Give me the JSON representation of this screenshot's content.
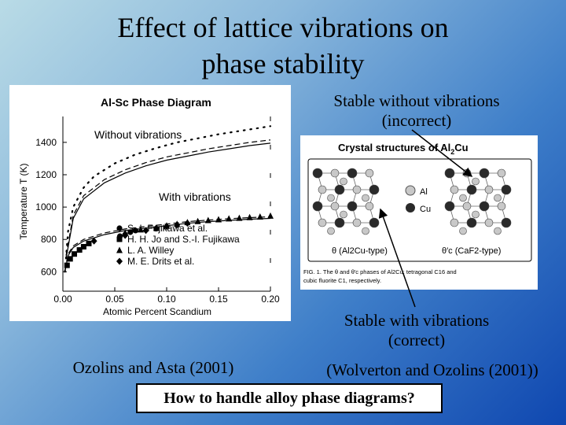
{
  "slide": {
    "title_line1": "Effect of lattice vibrations on",
    "title_line2": "phase stability",
    "label_without": "Stable without vibrations",
    "label_without_sub": "(incorrect)",
    "label_with": "Stable with vibrations",
    "label_with_sub": "(correct)",
    "citation_right": "(Wolverton and Ozolins (2001))",
    "citation_left": "Ozolins and Asta (2001)",
    "question": "How to handle alloy phase diagrams?"
  },
  "chart_data": {
    "type": "line",
    "title": "Al-Sc Phase Diagram",
    "xlabel": "Atomic Percent Scandium",
    "ylabel": "Temperature T (K)",
    "xlim": [
      0,
      0.2
    ],
    "ylim": [
      480,
      1560
    ],
    "xticks": [
      "0.00",
      "0.05",
      "0.10",
      "0.15",
      "0.20"
    ],
    "yticks": [
      "600",
      "800",
      "1000",
      "1200",
      "1400"
    ],
    "xtick_values": [
      0,
      0.05,
      0.1,
      0.15,
      0.2
    ],
    "ytick_values": [
      600,
      800,
      1000,
      1200,
      1400
    ],
    "annotations": [
      "Without vibrations",
      "With vibrations"
    ],
    "series": [
      {
        "name": "S.-I. Fujikawa et al.",
        "marker": "circle",
        "x": [
          0.055,
          0.06,
          0.065,
          0.07
        ],
        "y": [
          820,
          830,
          845,
          855
        ]
      },
      {
        "name": "H. H. Jo and S.-I. Fujikawa",
        "marker": "square",
        "x": [
          0.004,
          0.007,
          0.011,
          0.016,
          0.02,
          0.025
        ],
        "y": [
          640,
          680,
          710,
          735,
          755,
          775
        ]
      },
      {
        "name": "L. A. Willey",
        "marker": "triangle",
        "x": [
          0.06,
          0.075,
          0.09,
          0.1,
          0.11,
          0.12,
          0.13,
          0.14,
          0.15,
          0.16,
          0.17,
          0.18,
          0.19,
          0.2
        ],
        "y": [
          840,
          860,
          870,
          885,
          895,
          905,
          912,
          918,
          923,
          928,
          932,
          936,
          940,
          945
        ]
      },
      {
        "name": "M. E. Drits et al.",
        "marker": "diamond",
        "x": [
          0.03,
          0.06,
          0.08,
          0.09,
          0.1,
          0.11,
          0.12
        ],
        "y": [
          790,
          825,
          855,
          870,
          880,
          890,
          900
        ]
      }
    ],
    "curves": [
      {
        "type": "dotted",
        "x": [
          0.002,
          0.005,
          0.01,
          0.02,
          0.03,
          0.05,
          0.07,
          0.09,
          0.11,
          0.13,
          0.15,
          0.17,
          0.19,
          0.2
        ],
        "y": [
          600,
          850,
          1000,
          1120,
          1190,
          1270,
          1325,
          1365,
          1400,
          1425,
          1450,
          1470,
          1490,
          1500
        ]
      },
      {
        "type": "dashed",
        "x": [
          0.003,
          0.01,
          0.02,
          0.04,
          0.06,
          0.08,
          0.1,
          0.12,
          0.14,
          0.16,
          0.18,
          0.2
        ],
        "y": [
          700,
          950,
          1070,
          1170,
          1230,
          1275,
          1310,
          1335,
          1360,
          1380,
          1400,
          1415
        ]
      },
      {
        "type": "solid",
        "x": [
          0.003,
          0.01,
          0.02,
          0.04,
          0.06,
          0.08,
          0.1,
          0.12,
          0.14,
          0.16,
          0.18,
          0.2
        ],
        "y": [
          680,
          930,
          1050,
          1150,
          1210,
          1255,
          1290,
          1315,
          1340,
          1360,
          1380,
          1395
        ]
      },
      {
        "type": "solid",
        "x": [
          0.002,
          0.005,
          0.01,
          0.02,
          0.04,
          0.06,
          0.08,
          0.1,
          0.12,
          0.14,
          0.16,
          0.18,
          0.2
        ],
        "y": [
          600,
          700,
          750,
          790,
          830,
          855,
          870,
          885,
          900,
          910,
          918,
          925,
          930
        ]
      },
      {
        "type": "dashed",
        "x": [
          0.002,
          0.005,
          0.01,
          0.02,
          0.04,
          0.06,
          0.08,
          0.1,
          0.12,
          0.14,
          0.16,
          0.18,
          0.2
        ],
        "y": [
          610,
          710,
          760,
          800,
          840,
          865,
          880,
          895,
          910,
          920,
          928,
          935,
          940
        ]
      }
    ]
  },
  "crystal": {
    "title_main": "Crystal structures of Al",
    "title_sub": "2",
    "title_tail": "Cu",
    "legend_al": "Al",
    "legend_cu": "Cu",
    "theta_label": "θ (Al2Cu-type)",
    "thetac_label": "θ′c (CaF2-type)",
    "caption_line1": "FIG. 1.  The θ and θ′c phases of Al2Cu: tetragonal C16 and",
    "caption_line2": "cubic fluorite C1, respectively.",
    "colors": {
      "al": "#c8c8c8",
      "cu": "#2a2a2a"
    }
  }
}
